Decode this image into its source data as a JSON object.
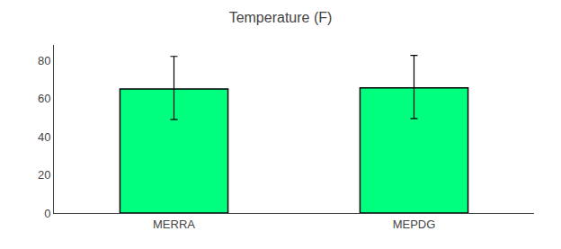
{
  "chart_data": {
    "type": "bar",
    "title": "Temperature (F)",
    "categories": [
      "MERRA",
      "MEPDG"
    ],
    "values": [
      65,
      65.5
    ],
    "errors_up": [
      17,
      17
    ],
    "errors_down": [
      16,
      16
    ],
    "color": "#00FF7F",
    "ylim": [
      0,
      88
    ],
    "yticks": [
      0,
      20,
      40,
      60,
      80
    ],
    "grid": false
  }
}
